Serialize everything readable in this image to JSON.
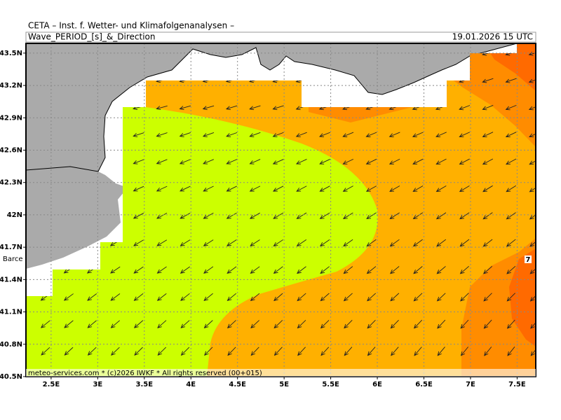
{
  "header": {
    "institute": "CETA – Inst. f. Wetter- und Klimafolgenanalysen –",
    "parameter": "Wave_PERIOD_[s]_&_Direction",
    "valid_time": "19.01.2026 15 UTC"
  },
  "map": {
    "xlim": [
      2.23,
      7.7
    ],
    "ylim": [
      40.5,
      43.59
    ],
    "lat_ticks": [
      {
        "value": 43.5,
        "label": "43.5N"
      },
      {
        "value": 43.2,
        "label": "43.2N"
      },
      {
        "value": 42.9,
        "label": "42.9N"
      },
      {
        "value": 42.6,
        "label": "42.6N"
      },
      {
        "value": 42.3,
        "label": "42.3N"
      },
      {
        "value": 42,
        "label": "42N"
      },
      {
        "value": 41.7,
        "label": "41.7N"
      },
      {
        "value": 41.4,
        "label": "41.4N"
      },
      {
        "value": 41.1,
        "label": "41.1N"
      },
      {
        "value": 40.8,
        "label": "40.8N"
      },
      {
        "value": 40.5,
        "label": "40.5N"
      }
    ],
    "lon_ticks": [
      {
        "value": 2.5,
        "label": "2.5E"
      },
      {
        "value": 3,
        "label": "3E"
      },
      {
        "value": 3.5,
        "label": "3.5E"
      },
      {
        "value": 4,
        "label": "4E"
      },
      {
        "value": 4.5,
        "label": "4.5E"
      },
      {
        "value": 5,
        "label": "5E"
      },
      {
        "value": 5.5,
        "label": "5.5E"
      },
      {
        "value": 6,
        "label": "6E"
      },
      {
        "value": 6.5,
        "label": "6.5E"
      },
      {
        "value": 7,
        "label": "7E"
      },
      {
        "value": 7.5,
        "label": "7.5E"
      }
    ],
    "city_label": "Barce",
    "contour_label": "7"
  },
  "footer": "meteo-services.com * (c)2026 IWKF * All rights reserved (00+015)"
}
